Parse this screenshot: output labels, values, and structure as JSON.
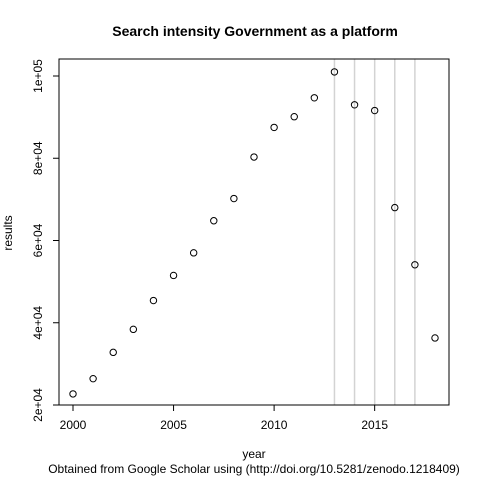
{
  "chart_data": {
    "type": "scatter",
    "title": "Search intensity Government as a platform",
    "xlabel": "year",
    "ylabel": "results",
    "caption": "Obtained from  Google Scholar using (http://doi.org/10.5281/zenodo.1218409)",
    "xlim": [
      2000,
      2018
    ],
    "ylim": [
      20000,
      100000
    ],
    "x_ticks": [
      2000,
      2005,
      2010,
      2015
    ],
    "x_tick_labels": [
      "2000",
      "2005",
      "2010",
      "2015"
    ],
    "y_ticks": [
      20000,
      40000,
      60000,
      80000,
      100000
    ],
    "y_tick_labels": [
      "2e+04",
      "4e+04",
      "6e+04",
      "8e+04",
      "1e+05"
    ],
    "vertical_lines": [
      2013,
      2014,
      2015,
      2016,
      2017
    ],
    "grid": false,
    "x": [
      2000,
      2001,
      2002,
      2003,
      2004,
      2005,
      2006,
      2007,
      2008,
      2009,
      2010,
      2011,
      2012,
      2013,
      2014,
      2015,
      2016,
      2017,
      2018
    ],
    "y": [
      22700,
      26400,
      32800,
      38400,
      45400,
      51500,
      57000,
      64800,
      70200,
      80300,
      87500,
      90100,
      94700,
      101000,
      93000,
      91600,
      68000,
      54100,
      36300
    ],
    "marker_color": "#000000",
    "vline_color": "#d3d3d3"
  }
}
